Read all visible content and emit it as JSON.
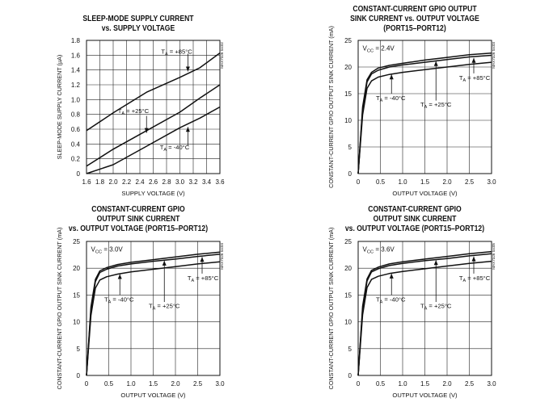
{
  "chart_data": [
    {
      "type": "line",
      "title": [
        "SLEEP-MODE SUPPLY CURRENT",
        "vs. SUPPLY VOLTAGE"
      ],
      "xlabel": "SUPPLY VOLTAGE (V)",
      "ylabel": "SLEEP-MODE SUPPLY CURRENT (µA)",
      "xlim": [
        1.6,
        3.6
      ],
      "ylim": [
        0,
        1.8
      ],
      "xticks": [
        1.6,
        1.8,
        2.0,
        2.2,
        2.4,
        2.6,
        2.8,
        3.0,
        3.2,
        3.4,
        3.6
      ],
      "xtick_labels": [
        "1.6",
        "1.8",
        "2.0",
        "2.2",
        "2.4",
        "2.6",
        "2.8",
        "3.0",
        "3.2",
        "3.4",
        "3.6"
      ],
      "yticks": [
        0,
        0.2,
        0.4,
        0.6,
        0.8,
        1.0,
        1.2,
        1.4,
        1.6,
        1.8
      ],
      "ytick_labels": [
        "0",
        "0.2",
        "0.4",
        "0.6",
        "0.8",
        "1.0",
        "1.2",
        "1.4",
        "1.6",
        "1.8"
      ],
      "grid": true,
      "watermark": "MAX7326 toc02",
      "series": [
        {
          "name": "TA = +85°C",
          "x": [
            1.6,
            2.0,
            2.5,
            3.0,
            3.3,
            3.6
          ],
          "y": [
            0.58,
            0.82,
            1.1,
            1.3,
            1.43,
            1.63
          ]
        },
        {
          "name": "TA = +25°C",
          "x": [
            1.6,
            2.0,
            2.5,
            3.0,
            3.3,
            3.6
          ],
          "y": [
            0.1,
            0.33,
            0.58,
            0.83,
            1.02,
            1.2
          ]
        },
        {
          "name": "TA = -40°C",
          "x": [
            1.6,
            2.0,
            2.5,
            3.0,
            3.3,
            3.6
          ],
          "y": [
            0.0,
            0.12,
            0.37,
            0.62,
            0.75,
            0.9
          ]
        }
      ],
      "annotations": [
        {
          "prefix": "T",
          "sub": "A",
          "suffix": " = +85°C",
          "x": 2.72,
          "y": 1.62,
          "ax": 3.12,
          "ay": 1.62,
          "ax2": 3.12,
          "ay2": 1.38
        },
        {
          "prefix": "T",
          "sub": "A",
          "suffix": " = +25°C",
          "x": 2.07,
          "y": 0.82,
          "ax": 2.5,
          "ay": 0.78,
          "ax2": 2.5,
          "ay2": 0.55
        },
        {
          "prefix": "T",
          "sub": "A",
          "suffix": " = -40°C",
          "x": 2.7,
          "y": 0.33,
          "ax": 3.12,
          "ay": 0.38,
          "ax2": 3.12,
          "ay2": 0.63
        }
      ]
    },
    {
      "type": "line",
      "title": [
        "CONSTANT-CURRENT GPIO OUTPUT",
        "SINK CURRENT vs. OUTPUT VOLTAGE",
        "(PORT15–PORT12)"
      ],
      "xlabel": "OUTPUT VOLTAGE (V)",
      "ylabel": "CONSTANT-CURRENT GPIO OUTPUT SINK CURRENT (mA)",
      "xlim": [
        0,
        3.0
      ],
      "ylim": [
        0,
        25
      ],
      "xticks": [
        0,
        0.5,
        1.0,
        1.5,
        2.0,
        2.5,
        3.0
      ],
      "xtick_labels": [
        "0",
        "0.5",
        "1.0",
        "1.5",
        "2.0",
        "2.5",
        "3.0"
      ],
      "yticks": [
        0,
        5,
        10,
        15,
        20,
        25
      ],
      "ytick_labels": [
        "0",
        "5",
        "10",
        "15",
        "20",
        "25"
      ],
      "grid": true,
      "watermark": "MAX7326 toc03",
      "vcc_label": {
        "prefix": "V",
        "sub": "CC",
        "suffix": " = 2.4V",
        "x": 0.1,
        "y": 23.1
      },
      "series": [
        {
          "name": "TA = +85°C",
          "x": [
            0,
            0.1,
            0.2,
            0.3,
            0.45,
            0.7,
            1.0,
            1.5,
            2.0,
            2.5,
            3.0
          ],
          "y": [
            0,
            12.0,
            17.2,
            18.7,
            19.4,
            20.0,
            20.4,
            20.9,
            21.4,
            21.9,
            22.2
          ]
        },
        {
          "name": "TA = +25°C",
          "x": [
            0,
            0.1,
            0.2,
            0.3,
            0.45,
            0.7,
            1.0,
            1.5,
            2.0,
            2.5,
            3.0
          ],
          "y": [
            0,
            12.5,
            17.6,
            19.0,
            19.8,
            20.3,
            20.7,
            21.3,
            21.8,
            22.3,
            22.6
          ]
        },
        {
          "name": "TA = -40°C",
          "x": [
            0,
            0.1,
            0.2,
            0.3,
            0.45,
            0.7,
            1.0,
            1.5,
            2.0,
            2.5,
            3.0
          ],
          "y": [
            0,
            11.0,
            16.0,
            17.4,
            18.1,
            18.6,
            19.0,
            19.5,
            20.0,
            20.5,
            20.9
          ]
        }
      ],
      "annotations": [
        {
          "prefix": "T",
          "sub": "A",
          "suffix": " = +85°C",
          "x": 2.27,
          "y": 17.6,
          "ax": 2.6,
          "ay": 18.8,
          "ax2": 2.6,
          "ay2": 21.7
        },
        {
          "prefix": "T",
          "sub": "A",
          "suffix": " = +25°C",
          "x": 1.4,
          "y": 12.6,
          "ax": 1.75,
          "ay": 13.7,
          "ax2": 1.75,
          "ay2": 21.1
        },
        {
          "prefix": "T",
          "sub": "A",
          "suffix": " = -40°C",
          "x": 0.4,
          "y": 13.8,
          "ax": 0.75,
          "ay": 15.0,
          "ax2": 0.75,
          "ay2": 18.6
        }
      ]
    },
    {
      "type": "line",
      "title": [
        "CONSTANT-CURRENT GPIO",
        "OUTPUT SINK CURRENT",
        "vs. OUTPUT VOLTAGE (PORT15–PORT12)"
      ],
      "xlabel": "OUTPUT VOLTAGE (V)",
      "ylabel": "CONSTANT-CURRENT GPIO OUTPUT SINK CURRENT (mA)",
      "xlim": [
        0,
        3.0
      ],
      "ylim": [
        0,
        25
      ],
      "xticks": [
        0,
        0.5,
        1.0,
        1.5,
        2.0,
        2.5,
        3.0
      ],
      "xtick_labels": [
        "0",
        "0.5",
        "1.0",
        "1.5",
        "2.0",
        "2.5",
        "3.0"
      ],
      "yticks": [
        0,
        5,
        10,
        15,
        20,
        25
      ],
      "ytick_labels": [
        "0",
        "5",
        "10",
        "15",
        "20",
        "25"
      ],
      "grid": true,
      "watermark": "MAX7326 toc04",
      "vcc_label": {
        "prefix": "V",
        "sub": "CC",
        "suffix": " = 3.0V",
        "x": 0.1,
        "y": 23.1
      },
      "series": [
        {
          "name": "TA = +85°C",
          "x": [
            0,
            0.1,
            0.2,
            0.3,
            0.45,
            0.7,
            1.0,
            1.5,
            2.0,
            2.5,
            3.0
          ],
          "y": [
            0,
            12.3,
            17.5,
            19.2,
            19.8,
            20.4,
            20.8,
            21.3,
            21.7,
            22.2,
            22.6
          ]
        },
        {
          "name": "TA = +25°C",
          "x": [
            0,
            0.1,
            0.2,
            0.3,
            0.45,
            0.7,
            1.0,
            1.5,
            2.0,
            2.5,
            3.0
          ],
          "y": [
            0,
            12.8,
            17.9,
            19.5,
            20.1,
            20.7,
            21.1,
            21.6,
            22.1,
            22.6,
            23.0
          ]
        },
        {
          "name": "TA = -40°C",
          "x": [
            0,
            0.1,
            0.2,
            0.3,
            0.45,
            0.7,
            1.0,
            1.5,
            2.0,
            2.5,
            3.0
          ],
          "y": [
            0,
            11.2,
            16.3,
            17.8,
            18.4,
            18.9,
            19.3,
            19.8,
            20.3,
            20.8,
            21.2
          ]
        }
      ],
      "annotations": [
        {
          "prefix": "T",
          "sub": "A",
          "suffix": " = +85°C",
          "x": 2.27,
          "y": 17.8,
          "ax": 2.6,
          "ay": 19.0,
          "ax2": 2.6,
          "ay2": 22.1
        },
        {
          "prefix": "T",
          "sub": "A",
          "suffix": " = +25°C",
          "x": 1.4,
          "y": 12.6,
          "ax": 1.75,
          "ay": 13.7,
          "ax2": 1.75,
          "ay2": 21.4
        },
        {
          "prefix": "T",
          "sub": "A",
          "suffix": " = -40°C",
          "x": 0.4,
          "y": 13.8,
          "ax": 0.75,
          "ay": 15.0,
          "ax2": 0.75,
          "ay2": 18.9
        }
      ]
    },
    {
      "type": "line",
      "title": [
        "CONSTANT-CURRENT GPIO",
        "OUTPUT SINK CURRENT",
        "vs. OUTPUT VOLTAGE (PORT15–PORT12)"
      ],
      "xlabel": "OUTPUT VOLTAGE (V)",
      "ylabel": "CONSTANT-CURRENT GPIO OUTPUT SINK CURRENT (mA)",
      "xlim": [
        0,
        3.0
      ],
      "ylim": [
        0,
        25
      ],
      "xticks": [
        0,
        0.5,
        1.0,
        1.5,
        2.0,
        2.5,
        3.0
      ],
      "xtick_labels": [
        "0",
        "0.5",
        "1.0",
        "1.5",
        "2.0",
        "2.5",
        "3.0"
      ],
      "yticks": [
        0,
        5,
        10,
        15,
        20,
        25
      ],
      "ytick_labels": [
        "0",
        "5",
        "10",
        "15",
        "20",
        "25"
      ],
      "grid": true,
      "watermark": "MAX7326 toc05",
      "vcc_label": {
        "prefix": "V",
        "sub": "CC",
        "suffix": " = 3.6V",
        "x": 0.1,
        "y": 23.1
      },
      "series": [
        {
          "name": "TA = +85°C",
          "x": [
            0,
            0.1,
            0.2,
            0.3,
            0.45,
            0.7,
            1.0,
            1.5,
            2.0,
            2.5,
            3.0
          ],
          "y": [
            0,
            12.4,
            17.6,
            19.3,
            19.9,
            20.5,
            20.9,
            21.4,
            21.8,
            22.3,
            22.7
          ]
        },
        {
          "name": "TA = +25°C",
          "x": [
            0,
            0.1,
            0.2,
            0.3,
            0.45,
            0.7,
            1.0,
            1.5,
            2.0,
            2.5,
            3.0
          ],
          "y": [
            0,
            12.9,
            18.0,
            19.6,
            20.2,
            20.8,
            21.2,
            21.7,
            22.2,
            22.7,
            23.1
          ]
        },
        {
          "name": "TA = -40°C",
          "x": [
            0,
            0.1,
            0.2,
            0.3,
            0.45,
            0.7,
            1.0,
            1.5,
            2.0,
            2.5,
            3.0
          ],
          "y": [
            0,
            11.3,
            16.4,
            17.9,
            18.5,
            19.0,
            19.4,
            19.9,
            20.4,
            20.9,
            21.3
          ]
        }
      ],
      "annotations": [
        {
          "prefix": "T",
          "sub": "A",
          "suffix": " = +85°C",
          "x": 2.27,
          "y": 17.8,
          "ax": 2.6,
          "ay": 19.0,
          "ax2": 2.6,
          "ay2": 22.2
        },
        {
          "prefix": "T",
          "sub": "A",
          "suffix": " = +25°C",
          "x": 1.4,
          "y": 12.6,
          "ax": 1.75,
          "ay": 13.7,
          "ax2": 1.75,
          "ay2": 21.5
        },
        {
          "prefix": "T",
          "sub": "A",
          "suffix": " = -40°C",
          "x": 0.4,
          "y": 13.8,
          "ax": 0.75,
          "ay": 15.0,
          "ax2": 0.75,
          "ay2": 19.0
        }
      ]
    }
  ]
}
